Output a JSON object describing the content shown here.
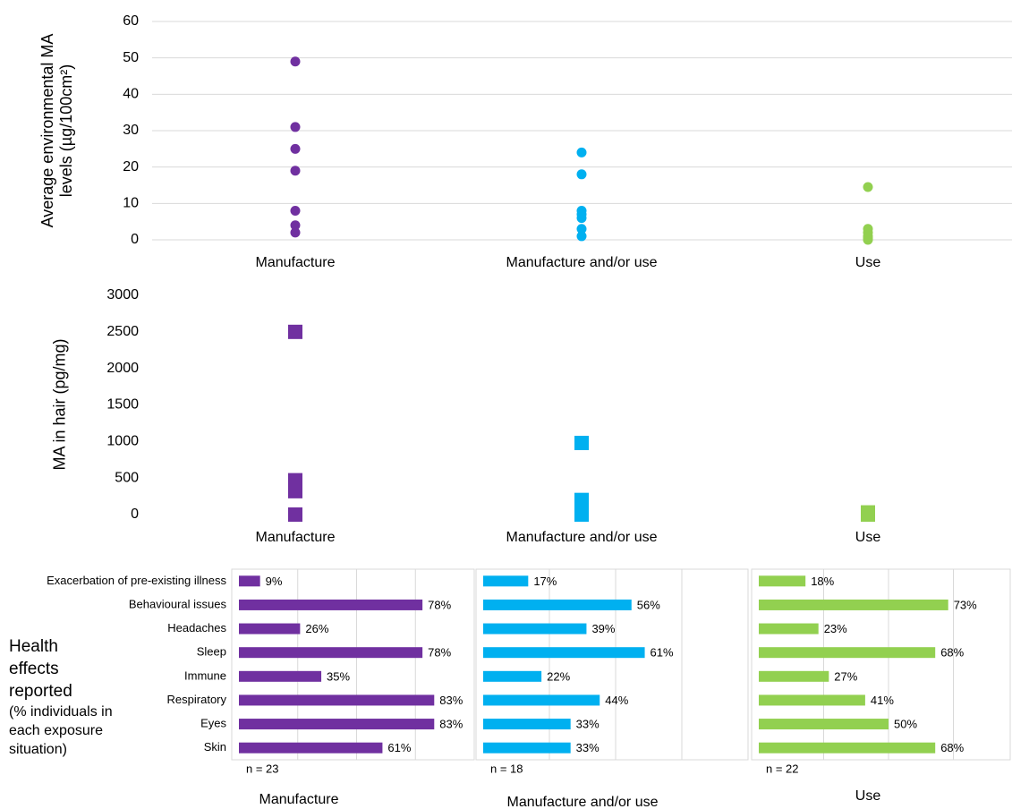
{
  "chart_data": [
    {
      "type": "strip",
      "ylabel": "Average environmental MA levels (µg/100cm²)",
      "ylim": [
        0,
        60
      ],
      "yticks": [
        0,
        10,
        20,
        30,
        40,
        50,
        60
      ],
      "grid": true,
      "marker": "circle",
      "groups": [
        {
          "category": "Manufacture",
          "color": "#7030a0",
          "values": [
            49,
            31,
            25,
            19,
            8,
            4,
            2
          ]
        },
        {
          "category": "Manufacture and/or use",
          "color": "#00b0f0",
          "values": [
            24,
            18,
            8,
            7,
            6,
            3,
            1
          ]
        },
        {
          "category": "Use",
          "color": "#92d050",
          "values": [
            14.5,
            3,
            2,
            1,
            0.5,
            0
          ]
        }
      ]
    },
    {
      "type": "strip",
      "ylabel": "MA in hair (pg/mg)",
      "ylim": [
        0,
        3000
      ],
      "yticks": [
        0,
        500,
        1000,
        1500,
        2000,
        2500,
        3000
      ],
      "grid": false,
      "marker": "square",
      "groups": [
        {
          "category": "Manufacture",
          "color": "#7030a0",
          "values": [
            2500,
            470,
            320,
            0
          ]
        },
        {
          "category": "Manufacture and/or use",
          "color": "#00b0f0",
          "values": [
            980,
            200,
            100,
            0
          ]
        },
        {
          "category": "Use",
          "color": "#92d050",
          "values": [
            30,
            0
          ]
        }
      ]
    },
    {
      "type": "hbar",
      "title": "Health effects reported",
      "subtitle": "(% individuals in each exposure situation)",
      "categories": [
        "Exacerbation of pre-existing illness",
        "Behavioural issues",
        "Headaches",
        "Sleep",
        "Immune",
        "Respiratory",
        "Eyes",
        "Skin"
      ],
      "xlim": [
        0,
        100
      ],
      "xticks": [
        0,
        25,
        50,
        75,
        100
      ],
      "grid": true,
      "series": [
        {
          "name": "Manufacture",
          "n_label": "n = 23",
          "color": "#7030a0",
          "values": [
            9,
            78,
            26,
            78,
            35,
            83,
            83,
            61
          ],
          "value_labels": [
            "9%",
            "78%",
            "26%",
            "78%",
            "35%",
            "83%",
            "83%",
            "61%"
          ]
        },
        {
          "name": "Manufacture and/or use",
          "n_label": "n = 18",
          "color": "#00b0f0",
          "values": [
            17,
            56,
            39,
            61,
            22,
            44,
            33,
            33
          ],
          "value_labels": [
            "17%",
            "56%",
            "39%",
            "61%",
            "22%",
            "44%",
            "33%",
            "33%"
          ]
        },
        {
          "name": "Use",
          "n_label": "n = 22",
          "color": "#92d050",
          "values": [
            18,
            73,
            23,
            68,
            27,
            41,
            50,
            68
          ],
          "value_labels": [
            "18%",
            "73%",
            "23%",
            "68%",
            "27%",
            "41%",
            "50%",
            "68%"
          ]
        }
      ]
    }
  ]
}
